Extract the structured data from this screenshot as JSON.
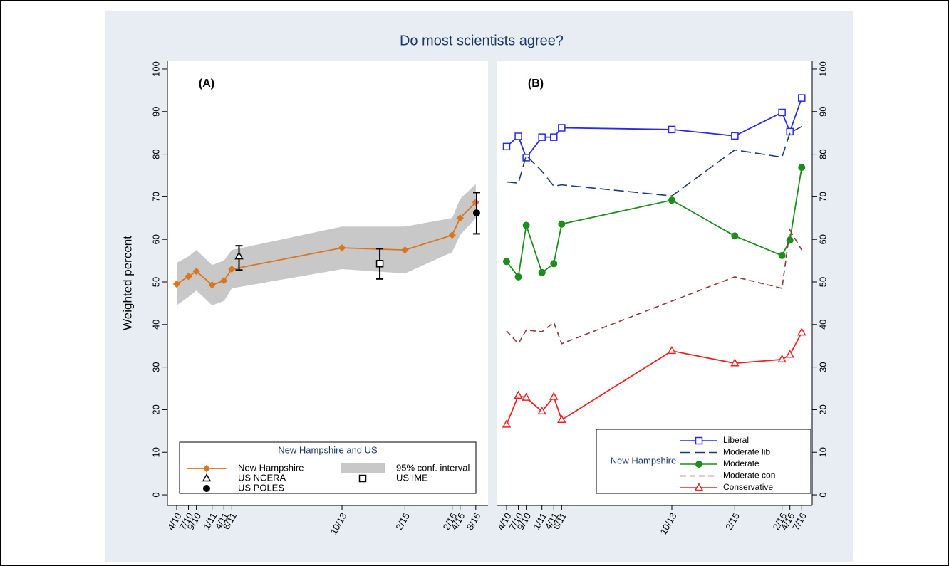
{
  "title": "Do most scientists agree?",
  "chart_data": [
    {
      "type": "line",
      "panel_label": "(A)",
      "ylabel": "Weighted percent",
      "xlim": [
        2010.054,
        2016.842
      ],
      "ylim": [
        -2.5,
        102
      ],
      "xticks": [
        {
          "value": 2010.25,
          "label": "4/10"
        },
        {
          "value": 2010.5,
          "label": "7/10"
        },
        {
          "value": 2010.667,
          "label": "9/10"
        },
        {
          "value": 2011.0,
          "label": "1/11"
        },
        {
          "value": 2011.25,
          "label": "4/11"
        },
        {
          "value": 2011.417,
          "label": "6/11"
        },
        {
          "value": 2013.75,
          "label": "10/13"
        },
        {
          "value": 2015.083,
          "label": "2/15"
        },
        {
          "value": 2016.083,
          "label": "2/16"
        },
        {
          "value": 2016.25,
          "label": "4/16"
        },
        {
          "value": 2016.583,
          "label": "8/16"
        }
      ],
      "yticks": [
        0,
        10,
        20,
        30,
        40,
        50,
        60,
        70,
        80,
        90,
        100
      ],
      "yaxis": "left",
      "legend": "bottom",
      "legend_title": "New Hampshire and US",
      "series": [
        {
          "name": "New Hampshire",
          "color": "#d9761e",
          "marker": "diamond",
          "x": [
            2010.25,
            2010.5,
            2010.667,
            2011.0,
            2011.25,
            2011.417,
            2013.75,
            2015.083,
            2016.083,
            2016.25,
            2016.583
          ],
          "values": [
            49.5,
            51.3,
            52.5,
            49.3,
            50.3,
            53.0,
            58.0,
            57.5,
            61.0,
            65.0,
            68.7
          ]
        },
        {
          "name": "95% conf. interval",
          "color": "#c8c8c8",
          "band": true,
          "x": [
            2010.25,
            2010.5,
            2010.667,
            2011.0,
            2011.25,
            2011.417,
            2013.75,
            2015.083,
            2016.083,
            2016.25,
            2016.583
          ],
          "low": [
            44.5,
            46.5,
            48.0,
            44.5,
            45.5,
            48.5,
            53.0,
            52.0,
            57.0,
            61.0,
            65.0
          ],
          "high": [
            54.5,
            56.0,
            57.5,
            54.0,
            55.0,
            57.5,
            63.0,
            63.0,
            65.0,
            69.5,
            73.0
          ]
        },
        {
          "name": "US NCERA",
          "color": "#000000",
          "marker": "triangle",
          "x": [
            2011.57
          ],
          "values": [
            56.0
          ],
          "low": [
            52.8
          ],
          "high": [
            58.5
          ]
        },
        {
          "name": "US IME",
          "color": "#000000",
          "marker": "square",
          "x": [
            2014.55
          ],
          "values": [
            54.3
          ],
          "low": [
            50.7
          ],
          "high": [
            57.8
          ]
        },
        {
          "name": "US POLES",
          "color": "#000000",
          "marker": "circle",
          "x": [
            2016.6
          ],
          "values": [
            66.2
          ],
          "low": [
            61.3
          ],
          "high": [
            71.0
          ]
        }
      ]
    },
    {
      "type": "line",
      "panel_label": "(B)",
      "xlim": [
        2010.039,
        2016.722
      ],
      "ylim": [
        -2.5,
        102
      ],
      "xticks": [
        {
          "value": 2010.25,
          "label": "4/10"
        },
        {
          "value": 2010.5,
          "label": "7/10"
        },
        {
          "value": 2010.667,
          "label": "9/10"
        },
        {
          "value": 2011.0,
          "label": "1/11"
        },
        {
          "value": 2011.25,
          "label": "4/11"
        },
        {
          "value": 2011.417,
          "label": "6/11"
        },
        {
          "value": 2013.75,
          "label": "10/13"
        },
        {
          "value": 2015.083,
          "label": "2/15"
        },
        {
          "value": 2016.083,
          "label": "2/16"
        },
        {
          "value": 2016.25,
          "label": "4/16"
        },
        {
          "value": 2016.5,
          "label": "7/16"
        }
      ],
      "yticks": [
        0,
        10,
        20,
        30,
        40,
        50,
        60,
        70,
        80,
        90,
        100
      ],
      "yaxis": "right",
      "legend": "bottom right",
      "legend_title": "New Hampshire",
      "series": [
        {
          "name": "Liberal",
          "color": "#2a2ae6",
          "marker": "square",
          "x": [
            2010.25,
            2010.5,
            2010.667,
            2011.0,
            2011.25,
            2011.417,
            2013.75,
            2015.083,
            2016.083,
            2016.25,
            2016.5
          ],
          "values": [
            81.8,
            84.2,
            79.2,
            84.0,
            84.0,
            86.2,
            85.8,
            84.3,
            89.8,
            85.3,
            93.2
          ]
        },
        {
          "name": "Moderate lib",
          "color": "#1f3d6b",
          "dash": "14 6",
          "x": [
            2010.25,
            2010.5,
            2010.667,
            2011.0,
            2011.25,
            2011.417,
            2013.75,
            2015.083,
            2016.083,
            2016.25,
            2016.5
          ],
          "values": [
            73.5,
            73.2,
            79.7,
            76.0,
            72.5,
            72.8,
            70.2,
            81.0,
            79.3,
            85.0,
            86.5
          ]
        },
        {
          "name": "Moderate",
          "color": "#1e8c1e",
          "marker": "circle",
          "x": [
            2010.25,
            2010.5,
            2010.667,
            2011.0,
            2011.25,
            2011.417,
            2013.75,
            2015.083,
            2016.083,
            2016.25,
            2016.5
          ],
          "values": [
            54.8,
            51.2,
            63.3,
            52.2,
            54.3,
            63.6,
            69.2,
            60.8,
            56.2,
            59.8,
            76.9
          ]
        },
        {
          "name": "Moderate con",
          "color": "#8b3a3a",
          "dash": "8 5",
          "x": [
            2010.25,
            2010.5,
            2010.667,
            2011.0,
            2011.25,
            2011.417,
            2013.75,
            2015.083,
            2016.083,
            2016.25,
            2016.5
          ],
          "values": [
            38.5,
            35.5,
            38.7,
            38.3,
            40.5,
            35.5,
            45.5,
            51.2,
            48.5,
            62.2,
            57.5
          ]
        },
        {
          "name": "Conservative",
          "color": "#ee2222",
          "marker": "triangle",
          "x": [
            2010.25,
            2010.5,
            2010.667,
            2011.0,
            2011.25,
            2011.417,
            2013.75,
            2015.083,
            2016.083,
            2016.25,
            2016.5
          ],
          "values": [
            16.5,
            23.3,
            22.8,
            19.6,
            23.0,
            17.6,
            33.8,
            30.9,
            31.8,
            32.9,
            38.1
          ]
        }
      ]
    }
  ]
}
